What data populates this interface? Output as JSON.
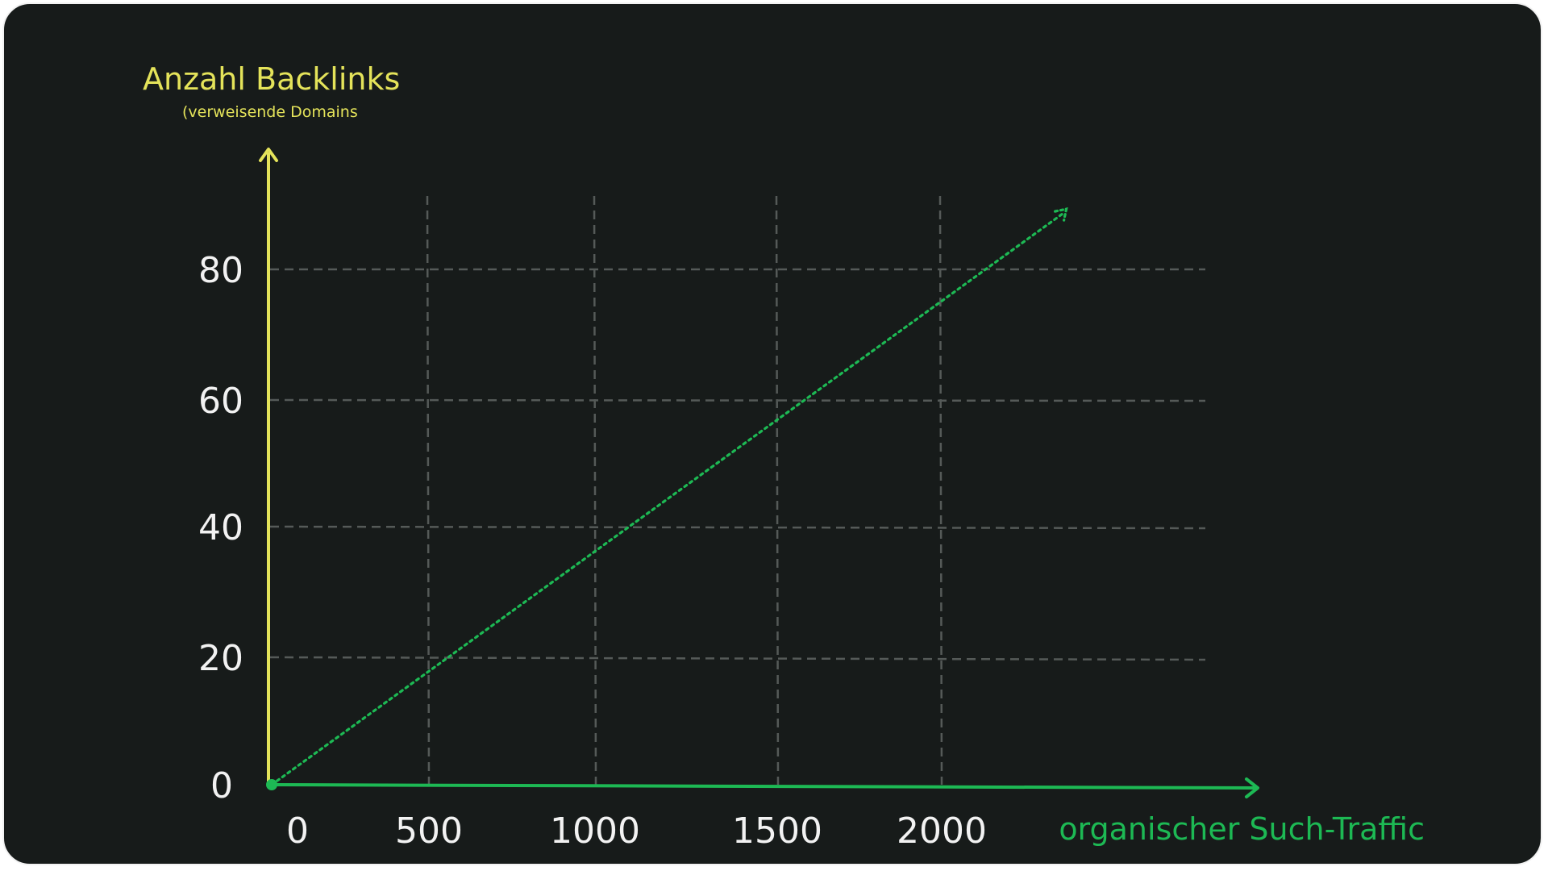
{
  "chart_data": {
    "type": "line",
    "ylabel": "Anzahl Backlinks",
    "ylabel_sub": "(verweisende Domains",
    "xlabel": "organischer Such-Traffic",
    "x_ticks": [
      "0",
      "500",
      "1000",
      "1500",
      "2000"
    ],
    "y_ticks": [
      "0",
      "20",
      "40",
      "60",
      "80"
    ],
    "xlim": [
      0,
      2000
    ],
    "ylim": [
      0,
      80
    ],
    "grid": true,
    "series": [
      {
        "x": [
          0,
          2400
        ],
        "y": [
          0,
          90
        ],
        "style": "dotted"
      }
    ],
    "colors": {
      "y_axis": "#e4e35a",
      "x_axis": "#1db954",
      "trend": "#1db954",
      "grid": "#555a58",
      "tick_text": "#f2f2f2"
    }
  }
}
